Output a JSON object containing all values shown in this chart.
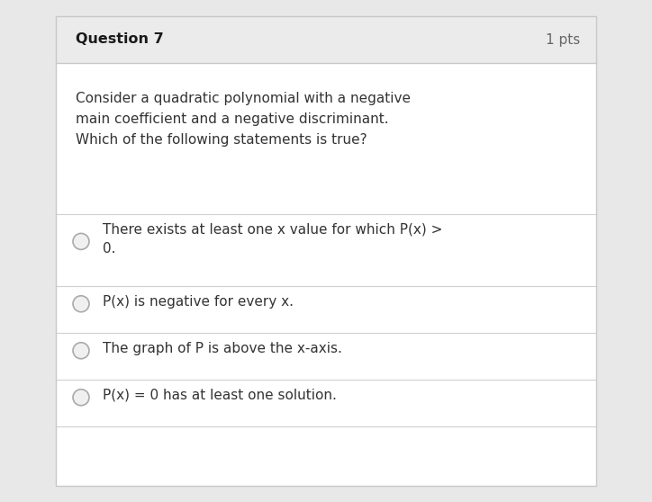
{
  "title": "Question 7",
  "pts": "1 pts",
  "question_text": "Consider a quadratic polynomial with a negative\nmain coefficient and a negative discriminant.\nWhich of the following statements is true?",
  "options": [
    "There exists at least one x value for which P(x) >\n0.",
    "P(x) is negative for every x.",
    "The graph of P is above the x-axis.",
    "P(x) = 0 has at least one solution."
  ],
  "outer_bg": "#e8e8e8",
  "header_bg": "#ebebeb",
  "body_bg": "#ffffff",
  "border_color": "#c8c8c8",
  "title_color": "#1a1a1a",
  "pts_color": "#666666",
  "question_color": "#333333",
  "option_color": "#333333",
  "radio_fill": "#f0f0f0",
  "radio_border": "#aaaaaa",
  "separator_color": "#d0d0d0",
  "title_fontsize": 11.5,
  "pts_fontsize": 11,
  "question_fontsize": 11,
  "option_fontsize": 11
}
